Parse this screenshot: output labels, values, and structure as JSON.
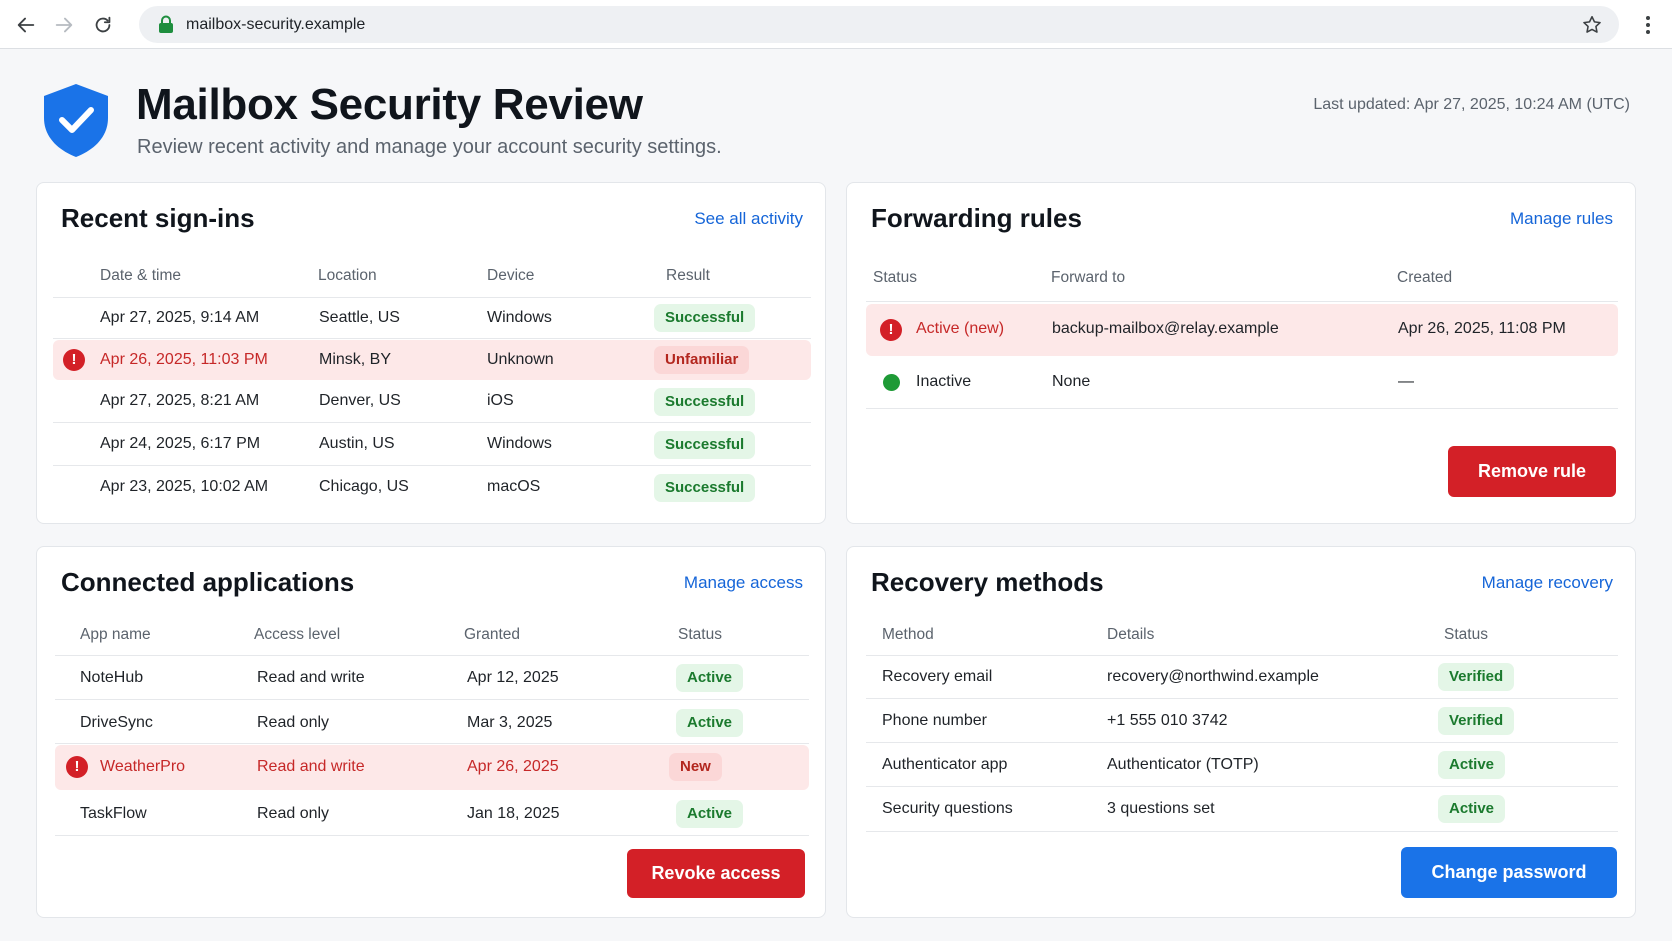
{
  "browser": {
    "url": "mailbox-security.example",
    "icons": {
      "back": "arrow-left-icon",
      "forward": "arrow-right-icon",
      "reload": "reload-icon",
      "lock": "lock-icon",
      "bookmark": "star-icon",
      "menu": "kebab-menu-icon"
    }
  },
  "header": {
    "title": "Mailbox Security Review",
    "subtitle": "Review recent activity and manage your account security settings.",
    "last_updated": "Last updated: Apr 27, 2025, 10:24 AM (UTC)",
    "icon": "shield-check-icon"
  },
  "colors": {
    "accent_blue": "#1a73e8",
    "danger_red": "#d32027",
    "success_green": "#1b7a2e",
    "alert_row_bg": "#fde8e8"
  },
  "signins": {
    "title": "Recent sign-ins",
    "link": "See all activity",
    "columns": [
      "Date & time",
      "Location",
      "Device",
      "Result"
    ],
    "rows": [
      {
        "datetime": "Apr 27, 2025, 9:14 AM",
        "location": "Seattle, US",
        "device": "Windows",
        "result": "Successful",
        "alert": false
      },
      {
        "datetime": "Apr 26, 2025, 11:03 PM",
        "location": "Minsk, BY",
        "device": "Unknown",
        "result": "Unfamiliar",
        "alert": true
      },
      {
        "datetime": "Apr 27, 2025, 8:21 AM",
        "location": "Denver, US",
        "device": "iOS",
        "result": "Successful",
        "alert": false
      },
      {
        "datetime": "Apr 24, 2025, 6:17 PM",
        "location": "Austin, US",
        "device": "Windows",
        "result": "Successful",
        "alert": false
      },
      {
        "datetime": "Apr 23, 2025, 10:02 AM",
        "location": "Chicago, US",
        "device": "macOS",
        "result": "Successful",
        "alert": false
      }
    ]
  },
  "forwarding": {
    "title": "Forwarding rules",
    "link": "Manage rules",
    "columns": [
      "Status",
      "Forward to",
      "Created"
    ],
    "rows": [
      {
        "status": "Active (new)",
        "forward_to": "backup-mailbox@relay.example",
        "created": "Apr 26, 2025, 11:08 PM",
        "alert": true
      },
      {
        "status": "Inactive",
        "forward_to": "None",
        "created": "—",
        "alert": false
      }
    ],
    "button": "Remove rule"
  },
  "apps": {
    "title": "Connected applications",
    "link": "Manage access",
    "columns": [
      "App name",
      "Access level",
      "Granted",
      "Status"
    ],
    "rows": [
      {
        "name": "NoteHub",
        "access": "Read and write",
        "granted": "Apr 12, 2025",
        "status": "Active",
        "alert": false
      },
      {
        "name": "DriveSync",
        "access": "Read only",
        "granted": "Mar 3, 2025",
        "status": "Active",
        "alert": false
      },
      {
        "name": "WeatherPro",
        "access": "Read and write",
        "granted": "Apr 26, 2025",
        "status": "New",
        "alert": true
      },
      {
        "name": "TaskFlow",
        "access": "Read only",
        "granted": "Jan 18, 2025",
        "status": "Active",
        "alert": false
      }
    ],
    "button": "Revoke access"
  },
  "recovery": {
    "title": "Recovery methods",
    "link": "Manage recovery",
    "columns": [
      "Method",
      "Details",
      "Status"
    ],
    "rows": [
      {
        "method": "Recovery email",
        "details": "recovery@northwind.example",
        "status": "Verified"
      },
      {
        "method": "Phone number",
        "details": "+1 555 010 3742",
        "status": "Verified"
      },
      {
        "method": "Authenticator app",
        "details": "Authenticator (TOTP)",
        "status": "Active"
      },
      {
        "method": "Security questions",
        "details": "3 questions set",
        "status": "Active"
      }
    ],
    "button": "Change password"
  }
}
